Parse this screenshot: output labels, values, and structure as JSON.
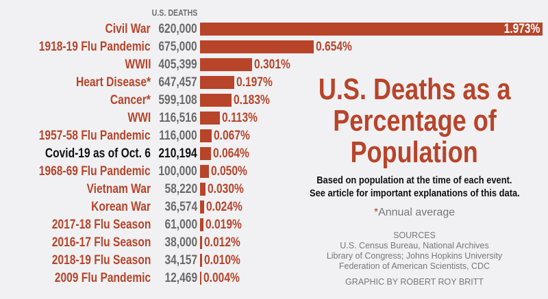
{
  "column_header": "U.S. DEATHS",
  "title_lines": [
    "U.S. Deaths as a",
    "Percentage of",
    "Population"
  ],
  "subtitle_lines": [
    "Based on population at the time of each event.",
    "See article for important explanations of this data."
  ],
  "note": {
    "asterisk": "*",
    "text": "Annual average"
  },
  "sources": {
    "heading": "SOURCES",
    "lines": [
      "U.S. Census Bureau, National Archives",
      "Library of Congress; Johns Hopkins University",
      "Federation of American Scientists, CDC"
    ]
  },
  "credit": "GRAPHIC BY ROBERT ROY BRITT",
  "colors": {
    "accent": "#b8442a",
    "deaths_text": "#6a6a6a",
    "highlight_text": "#111111",
    "background": "#f1f1f3"
  },
  "chart_data": {
    "type": "bar",
    "orientation": "horizontal",
    "title": "U.S. Deaths as a Percentage of Population",
    "xlabel": "",
    "ylabel": "",
    "xlim": [
      0,
      1.973
    ],
    "grid": false,
    "categories": [
      "Civil War",
      "1918-19 Flu Pandemic",
      "WWII",
      "Heart Disease*",
      "Cancer*",
      "WWI",
      "1957-58 Flu Pandemic",
      "Covid-19 as of Oct. 6",
      "1968-69 Flu Pandemic",
      "Vietnam War",
      "Korean War",
      "2017-18 Flu Season",
      "2016-17 Flu Season",
      "2018-19 Flu Season",
      "2009 Flu Pandemic"
    ],
    "deaths": [
      "620,000",
      "675,000",
      "405,399",
      "647,457",
      "599,108",
      "116,516",
      "116,000",
      "210,194",
      "100,000",
      "58,220",
      "36,574",
      "61,000",
      "38,000",
      "34,157",
      "12,469"
    ],
    "values": [
      1.973,
      0.654,
      0.301,
      0.197,
      0.183,
      0.113,
      0.067,
      0.064,
      0.05,
      0.03,
      0.024,
      0.019,
      0.012,
      0.01,
      0.004
    ],
    "value_labels": [
      "1.973%",
      "0.654%",
      "0.301%",
      "0.197%",
      "0.183%",
      "0.113%",
      "0.067%",
      "0.064%",
      "0.050%",
      "0.030%",
      "0.024%",
      "0.019%",
      "0.012%",
      "0.010%",
      "0.004%"
    ],
    "highlight_index": 7
  }
}
